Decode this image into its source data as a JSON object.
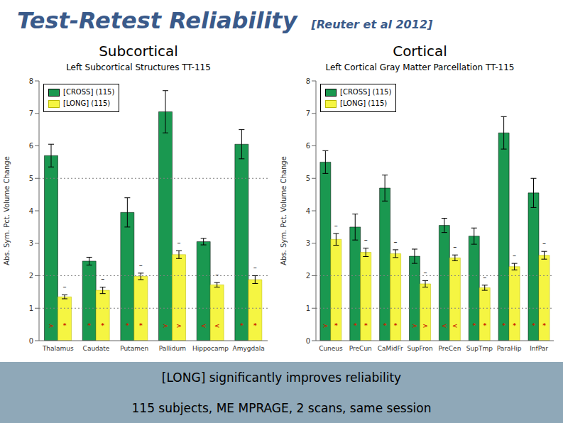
{
  "title": "Test-Retest Reliability",
  "subtitle": "[Reuter et al 2012]",
  "title_color": "#3a5a8a",
  "annotations": [
    "[LONG] significantly improves reliability",
    "115 subjects, ME MPRAGE, 2 scans, same session"
  ],
  "footer_color": "#8fa8b8",
  "chart_data": [
    {
      "type": "bar",
      "subtitle": "Subcortical",
      "title": "Left Subcortical Structures TT-115",
      "ylabel": "Abs. Sym. Pct. Volume Change",
      "ylim": [
        0,
        8
      ],
      "yticks": [
        0,
        1,
        2,
        3,
        4,
        5,
        6,
        7,
        8
      ],
      "reference_lines": [
        1,
        2,
        5
      ],
      "grid": false,
      "legend": "upper left",
      "annotation_color": "#cc2200",
      "categories": [
        "Thalamus",
        "Caudate",
        "Putamen",
        "Pallidum",
        "Hippocamp",
        "Amygdala"
      ],
      "series": [
        {
          "name": "[CROSS] (115)",
          "color": "#1a9850",
          "edge_color": "#000000",
          "values": [
            5.7,
            2.45,
            3.95,
            7.05,
            3.05,
            6.05
          ],
          "errors": [
            0.35,
            0.12,
            0.45,
            0.65,
            0.1,
            0.45
          ],
          "annotations": [
            ">",
            "*",
            "*",
            ">",
            "<",
            "*"
          ]
        },
        {
          "name": "[LONG] (115)",
          "color": "#f5f542",
          "edge_color": "#b8b800",
          "values": [
            1.35,
            1.55,
            1.98,
            2.65,
            1.72,
            1.88
          ],
          "errors": [
            0.06,
            0.1,
            0.1,
            0.12,
            0.07,
            0.12
          ],
          "annotations": [
            "*",
            "*",
            "*",
            ">",
            "<",
            "*"
          ],
          "top_annotations": [
            "–",
            "–",
            "–",
            "–",
            "–",
            "–"
          ]
        }
      ]
    },
    {
      "type": "bar",
      "subtitle": "Cortical",
      "title": "Left Cortical Gray Matter Parcellation TT-115",
      "ylabel": "Abs. Sym. Pct. Volume Change",
      "ylim": [
        0,
        8
      ],
      "yticks": [
        0,
        1,
        2,
        3,
        4,
        5,
        6,
        7,
        8
      ],
      "reference_lines": [
        1,
        2
      ],
      "grid": false,
      "legend": "upper left",
      "annotation_color": "#cc2200",
      "categories": [
        "Cuneus",
        "PreCun",
        "CaMidFr",
        "SupFron",
        "PreCen",
        "SupTmp",
        "ParaHip",
        "InfPar"
      ],
      "series": [
        {
          "name": "[CROSS] (115)",
          "color": "#1a9850",
          "edge_color": "#000000",
          "values": [
            5.5,
            3.5,
            4.7,
            2.6,
            3.55,
            3.22,
            6.4,
            4.55
          ],
          "errors": [
            0.35,
            0.4,
            0.4,
            0.22,
            0.22,
            0.25,
            0.5,
            0.45
          ],
          "annotations": [
            ">",
            "*",
            "*",
            ">",
            "<",
            "*",
            "*",
            "*"
          ]
        },
        {
          "name": "[LONG] (115)",
          "color": "#f5f542",
          "edge_color": "#b8b800",
          "values": [
            3.12,
            2.72,
            2.68,
            1.75,
            2.55,
            1.63,
            2.28,
            2.63
          ],
          "errors": [
            0.18,
            0.13,
            0.12,
            0.1,
            0.09,
            0.08,
            0.1,
            0.12
          ],
          "annotations": [
            "*",
            "*",
            "*",
            ">",
            "<",
            "*",
            "*",
            "*"
          ],
          "top_annotations": [
            "–",
            "–",
            "–",
            "–",
            "–",
            "–",
            "–",
            "–"
          ]
        }
      ]
    }
  ]
}
